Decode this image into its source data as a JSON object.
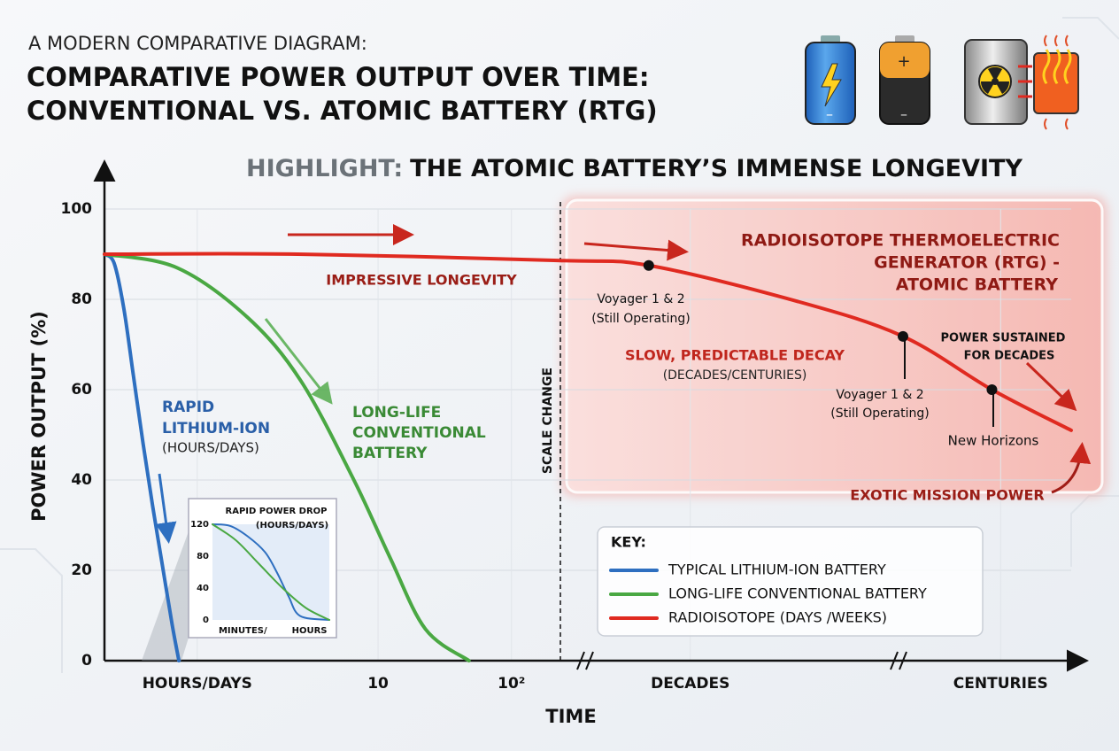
{
  "header": {
    "supertitle": "A MODERN COMPARATIVE DIAGRAM:",
    "title_lines": [
      "COMPARATIVE POWER OUTPUT OVER TIME:",
      "CONVENTIONAL VS. ATOMIC BATTERY (RTG)"
    ],
    "highlight_lead": "HIGHLIGHT:",
    "highlight": "THE ATOMIC BATTERY’S IMMENSE LONGEVITY"
  },
  "chart_data": [
    {
      "type": "line",
      "ylabel": "POWER OUTPUT (%)",
      "xlabel": "TIME",
      "xlim": [
        0,
        100
      ],
      "ylim": [
        0,
        100
      ],
      "yticks": [
        0,
        20,
        40,
        60,
        80,
        100
      ],
      "xticks": [
        {
          "value": 9.6,
          "label": "HOURS/DAYS"
        },
        {
          "value": 28.3,
          "label": "10"
        },
        {
          "value": 42.1,
          "label": "10²"
        },
        {
          "value": 60.6,
          "label": "DECADES"
        },
        {
          "value": 92.7,
          "label": "CENTURIES"
        }
      ],
      "grid": true,
      "legend_title": "KEY:",
      "series": [
        {
          "name": "TYPICAL LITHIUM-ION BATTERY",
          "color": "#2e6fc0",
          "x": [
            0,
            1,
            2,
            3,
            4,
            5,
            6,
            7,
            7.7
          ],
          "values": [
            90,
            88,
            78,
            63,
            48,
            34,
            21,
            8,
            0
          ]
        },
        {
          "name": "LONG-LIFE CONVENTIONAL BATTERY",
          "color": "#4aa843",
          "x": [
            0,
            7.5,
            14.8,
            20.3,
            25.8,
            29.5,
            33.2,
            37.7
          ],
          "values": [
            90,
            87,
            76,
            62,
            40,
            23,
            7,
            0
          ]
        },
        {
          "name": "RADIOISOTOPE (DAYS /WEEKS)",
          "color": "#e02a20",
          "x": [
            0,
            20,
            46.9,
            56.3,
            71.6,
            82.6,
            91.8,
            100
          ],
          "values": [
            90,
            90,
            88.6,
            87.5,
            79.6,
            71.8,
            60,
            51
          ]
        }
      ],
      "annotations": [
        "RAPID",
        "LITHIUM-ION",
        "(HOURS/DAYS)",
        "LONG-LIFE",
        "CONVENTIONAL",
        "BATTERY",
        "IMPRESSIVE LONGEVITY",
        "RADIOISOTOPE THERMOELECTRIC",
        "GENERATOR (RTG) -",
        "ATOMIC BATTERY",
        "SLOW, PREDICTABLE DECAY",
        "(DECADES/CENTURIES)",
        "Voyager 1 & 2",
        "(Still Operating)",
        "Voyager 1 & 2",
        "(Still Operating)",
        "New Horizons",
        "POWER SUSTAINED",
        "FOR DECADES",
        "EXOTIC MISSION POWER",
        "SCALE CHANGE"
      ]
    },
    {
      "type": "line",
      "title_lines": [
        "RAPID POWER DROP",
        "(HOURS/DAYS)"
      ],
      "xlim": [
        0,
        100
      ],
      "ylim": [
        0,
        120
      ],
      "yticks": [
        0,
        40,
        80,
        120
      ],
      "xticks": [
        {
          "value": 26,
          "label": "MINUTES/"
        },
        {
          "value": 83,
          "label": "HOURS"
        }
      ],
      "series": [
        {
          "color": "#2e6fc0",
          "x": [
            0,
            15,
            30,
            45,
            55,
            65,
            75,
            100
          ],
          "values": [
            120,
            118,
            105,
            85,
            60,
            30,
            5,
            0
          ]
        },
        {
          "color": "#4aa843",
          "x": [
            0,
            20,
            40,
            60,
            80,
            100
          ],
          "values": [
            120,
            100,
            70,
            40,
            15,
            0
          ]
        }
      ]
    }
  ]
}
